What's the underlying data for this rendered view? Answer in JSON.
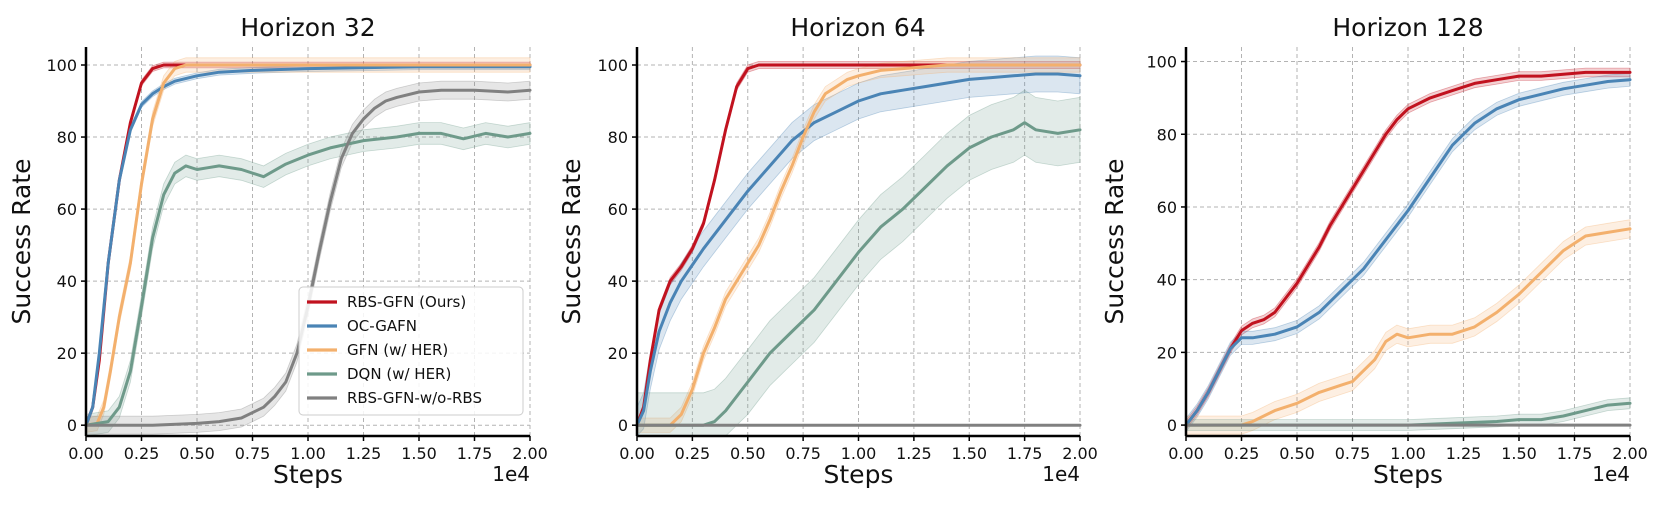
{
  "chart_data": [
    {
      "type": "line",
      "title": "Horizon 32",
      "xlabel": "Steps",
      "ylabel": "Success Rate",
      "x_offset_label": "1e4",
      "xlim": [
        0,
        2.0
      ],
      "ylim": [
        -3,
        105
      ],
      "xticks": [
        "0.00",
        "0.25",
        "0.50",
        "0.75",
        "1.00",
        "1.25",
        "1.50",
        "1.75",
        "2.00"
      ],
      "yticks": [
        "0",
        "20",
        "40",
        "60",
        "80",
        "100"
      ],
      "grid": true,
      "legend": "lower-right",
      "series": [
        {
          "name": "RBS-GFN (Ours)",
          "color": "#c1121f",
          "band": 0.8,
          "x": [
            0,
            0.03,
            0.06,
            0.1,
            0.15,
            0.2,
            0.25,
            0.3,
            0.35,
            0.4,
            0.6,
            1.0,
            1.5,
            2.0
          ],
          "y": [
            0,
            5,
            18,
            45,
            68,
            84,
            95,
            99,
            100,
            100,
            100,
            100,
            100,
            100
          ]
        },
        {
          "name": "OC-GAFN",
          "color": "#4a84b5",
          "band": 0.8,
          "x": [
            0,
            0.03,
            0.06,
            0.1,
            0.15,
            0.2,
            0.25,
            0.3,
            0.35,
            0.4,
            0.5,
            0.6,
            0.75,
            1.0,
            1.5,
            2.0
          ],
          "y": [
            0,
            5,
            20,
            45,
            68,
            82,
            89,
            92,
            94,
            95.5,
            97,
            98,
            98.5,
            99,
            99.5,
            99.5
          ]
        },
        {
          "name": "GFN (w/ HER)",
          "color": "#f3b06d",
          "band": 2,
          "x": [
            0,
            0.05,
            0.08,
            0.11,
            0.15,
            0.2,
            0.25,
            0.3,
            0.35,
            0.4,
            0.45,
            0.5,
            0.7,
            1.0,
            1.5,
            2.0
          ],
          "y": [
            0,
            0.5,
            5,
            15,
            30,
            45,
            67,
            85,
            95,
            99,
            100,
            100,
            100,
            100,
            100,
            100
          ]
        },
        {
          "name": "DQN (w/ HER)",
          "color": "#6e9a8a",
          "band": 3,
          "x": [
            0,
            0.1,
            0.15,
            0.2,
            0.25,
            0.3,
            0.35,
            0.4,
            0.45,
            0.5,
            0.55,
            0.6,
            0.7,
            0.8,
            0.9,
            1.0,
            1.1,
            1.25,
            1.4,
            1.5,
            1.6,
            1.7,
            1.8,
            1.9,
            2.0
          ],
          "y": [
            0,
            1,
            5,
            15,
            33,
            52,
            64,
            70,
            72,
            71,
            71.5,
            72,
            71,
            69,
            72.5,
            75,
            77,
            79,
            80,
            81,
            81,
            79.5,
            81,
            80,
            81
          ]
        },
        {
          "name": "RBS-GFN-w/o-RBS",
          "color": "#808080",
          "band": 2.5,
          "x": [
            0,
            0.3,
            0.5,
            0.6,
            0.7,
            0.8,
            0.85,
            0.9,
            0.95,
            1.0,
            1.05,
            1.1,
            1.15,
            1.2,
            1.25,
            1.3,
            1.35,
            1.4,
            1.5,
            1.6,
            1.75,
            1.9,
            2.0
          ],
          "y": [
            0,
            0,
            0.5,
            1,
            2,
            5,
            8,
            12,
            20,
            33,
            48,
            62,
            74,
            81,
            85,
            88,
            90,
            91,
            92.5,
            93,
            93,
            92.5,
            93
          ]
        }
      ]
    },
    {
      "type": "line",
      "title": "Horizon 64",
      "xlabel": "Steps",
      "ylabel": "Success Rate",
      "x_offset_label": "1e4",
      "xlim": [
        0,
        2.0
      ],
      "ylim": [
        -3,
        105
      ],
      "xticks": [
        "0.00",
        "0.25",
        "0.50",
        "0.75",
        "1.00",
        "1.25",
        "1.50",
        "1.75",
        "2.00"
      ],
      "yticks": [
        "0",
        "20",
        "40",
        "60",
        "80",
        "100"
      ],
      "grid": true,
      "series": [
        {
          "name": "RBS-GFN (Ours)",
          "color": "#c1121f",
          "band": 1,
          "x": [
            0,
            0.03,
            0.06,
            0.1,
            0.15,
            0.2,
            0.25,
            0.3,
            0.35,
            0.4,
            0.45,
            0.5,
            0.55,
            0.6,
            0.8,
            1.0,
            1.5,
            2.0
          ],
          "y": [
            0,
            5,
            18,
            32,
            40,
            44,
            49,
            56,
            68,
            82,
            94,
            99,
            100,
            100,
            100,
            100,
            100,
            100
          ]
        },
        {
          "name": "OC-GAFN",
          "color": "#4a84b5",
          "band": 5,
          "x": [
            0,
            0.03,
            0.06,
            0.1,
            0.15,
            0.2,
            0.3,
            0.4,
            0.5,
            0.6,
            0.7,
            0.8,
            0.9,
            1.0,
            1.1,
            1.2,
            1.3,
            1.4,
            1.5,
            1.6,
            1.7,
            1.8,
            1.9,
            2.0
          ],
          "y": [
            0,
            4,
            15,
            26,
            34,
            40,
            49,
            57,
            65,
            72,
            79,
            84,
            87,
            90,
            92,
            93,
            94,
            95,
            96,
            96.5,
            97,
            97.5,
            97.5,
            97
          ]
        },
        {
          "name": "GFN (w/ HER)",
          "color": "#f3b06d",
          "band": 2,
          "x": [
            0,
            0.15,
            0.2,
            0.25,
            0.3,
            0.35,
            0.4,
            0.45,
            0.5,
            0.55,
            0.6,
            0.65,
            0.7,
            0.75,
            0.8,
            0.85,
            0.9,
            0.95,
            1.0,
            1.1,
            1.2,
            1.3,
            1.4,
            1.6,
            1.8,
            2.0
          ],
          "y": [
            0,
            0,
            3,
            10,
            20,
            27,
            35,
            40,
            45,
            50,
            57,
            65,
            72,
            80,
            87,
            92,
            94,
            96,
            97,
            98.5,
            99,
            99.5,
            100,
            100,
            100,
            100
          ]
        },
        {
          "name": "DQN (w/ HER)",
          "color": "#6e9a8a",
          "band": 9,
          "x": [
            0,
            0.3,
            0.35,
            0.4,
            0.5,
            0.6,
            0.7,
            0.8,
            0.9,
            1.0,
            1.1,
            1.2,
            1.3,
            1.4,
            1.5,
            1.6,
            1.7,
            1.75,
            1.8,
            1.9,
            2.0
          ],
          "y": [
            0,
            0,
            1,
            4,
            12,
            20,
            26,
            32,
            40,
            48,
            55,
            60,
            66,
            72,
            77,
            80,
            82,
            84,
            82,
            81,
            82
          ]
        },
        {
          "name": "RBS-GFN-w/o-RBS",
          "color": "#808080",
          "band": 0,
          "x": [
            0,
            2.0
          ],
          "y": [
            0,
            0
          ]
        }
      ]
    },
    {
      "type": "line",
      "title": "Horizon 128",
      "xlabel": "Steps",
      "ylabel": "Success Rate",
      "x_offset_label": "1e4",
      "xlim": [
        0,
        2.0
      ],
      "ylim": [
        -3,
        104
      ],
      "xticks": [
        "0.00",
        "0.25",
        "0.50",
        "0.75",
        "1.00",
        "1.25",
        "1.50",
        "1.75",
        "2.00"
      ],
      "yticks": [
        "0",
        "20",
        "40",
        "60",
        "80",
        "100"
      ],
      "grid": true,
      "series": [
        {
          "name": "RBS-GFN (Ours)",
          "color": "#c1121f",
          "band": 1.2,
          "x": [
            0,
            0.05,
            0.1,
            0.15,
            0.2,
            0.25,
            0.3,
            0.35,
            0.4,
            0.45,
            0.5,
            0.55,
            0.6,
            0.65,
            0.7,
            0.75,
            0.8,
            0.85,
            0.9,
            0.95,
            1.0,
            1.1,
            1.2,
            1.3,
            1.4,
            1.5,
            1.6,
            1.7,
            1.8,
            1.9,
            2.0
          ],
          "y": [
            0,
            4,
            9,
            15,
            21,
            26,
            28,
            29,
            31,
            35,
            39,
            44,
            49,
            55,
            60,
            65,
            70,
            75,
            80,
            84,
            87,
            90,
            92,
            94,
            95,
            96,
            96,
            96.5,
            97,
            97,
            97
          ]
        },
        {
          "name": "OC-GAFN",
          "color": "#4a84b5",
          "band": 1.8,
          "x": [
            0,
            0.05,
            0.1,
            0.15,
            0.2,
            0.25,
            0.3,
            0.4,
            0.5,
            0.6,
            0.7,
            0.8,
            0.9,
            1.0,
            1.1,
            1.2,
            1.3,
            1.4,
            1.5,
            1.6,
            1.7,
            1.8,
            1.9,
            2.0
          ],
          "y": [
            0,
            4,
            9,
            15,
            21,
            24,
            24,
            25,
            27,
            31,
            37,
            43,
            51,
            59,
            68,
            77,
            83,
            87,
            89.5,
            91,
            92.5,
            93.5,
            94.5,
            95
          ]
        },
        {
          "name": "GFN (w/ HER)",
          "color": "#f3b06d",
          "band": 2.5,
          "x": [
            0,
            0.25,
            0.3,
            0.4,
            0.5,
            0.6,
            0.7,
            0.75,
            0.8,
            0.85,
            0.9,
            0.95,
            1.0,
            1.1,
            1.2,
            1.3,
            1.4,
            1.5,
            1.6,
            1.7,
            1.8,
            1.9,
            2.0
          ],
          "y": [
            0,
            0,
            1,
            4,
            6,
            9,
            11,
            12,
            15,
            18,
            23,
            25,
            24,
            25,
            25,
            27,
            31,
            36,
            42,
            48,
            52,
            53,
            54
          ]
        },
        {
          "name": "DQN (w/ HER)",
          "color": "#6e9a8a",
          "band": 1.5,
          "x": [
            0,
            1.0,
            1.2,
            1.4,
            1.5,
            1.6,
            1.7,
            1.8,
            1.9,
            2.0
          ],
          "y": [
            0,
            0,
            0.5,
            1,
            1.5,
            1.5,
            2.5,
            4,
            5.5,
            6
          ]
        },
        {
          "name": "RBS-GFN-w/o-RBS",
          "color": "#808080",
          "band": 0,
          "x": [
            0,
            2.0
          ],
          "y": [
            0,
            0
          ]
        }
      ]
    }
  ]
}
